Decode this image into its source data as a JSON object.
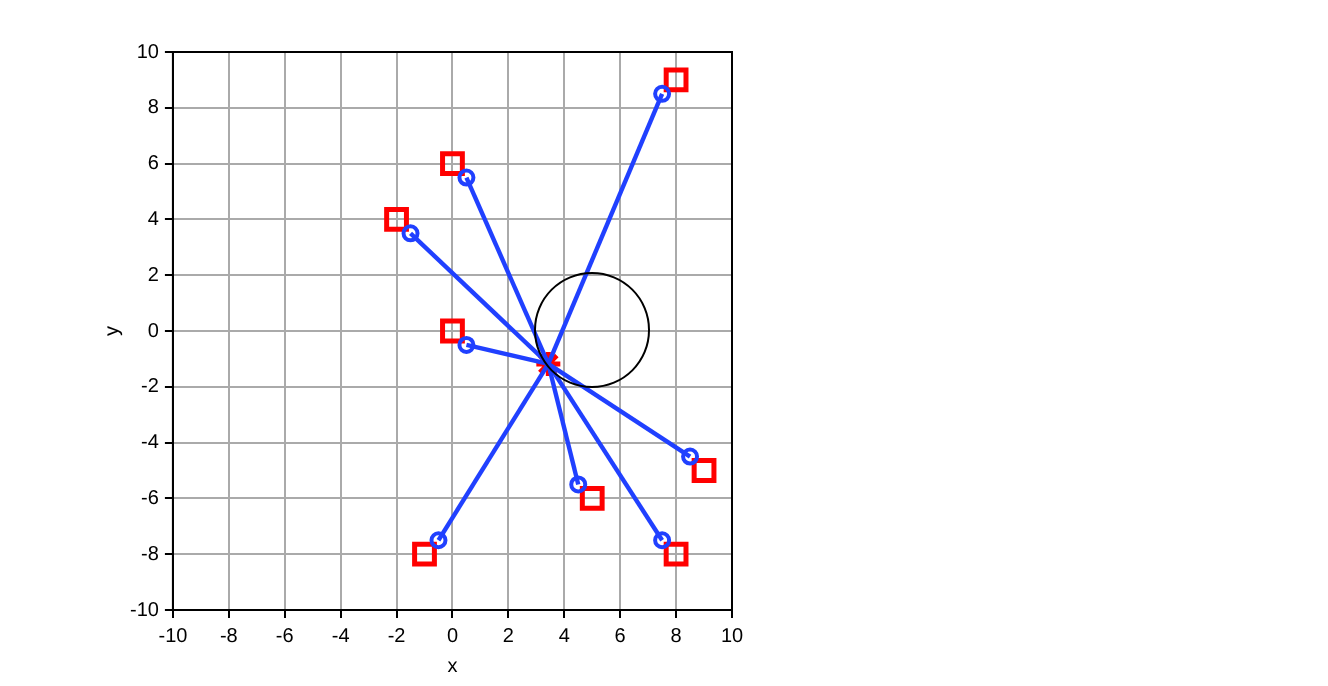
{
  "chart_data": {
    "type": "scatter",
    "xlabel": "x",
    "ylabel": "y",
    "xlim": [
      -10,
      10
    ],
    "ylim": [
      -10,
      10
    ],
    "xticks": [
      -10,
      -8,
      -6,
      -4,
      -2,
      0,
      2,
      4,
      6,
      8,
      10
    ],
    "yticks": [
      -10,
      -8,
      -6,
      -4,
      -2,
      0,
      2,
      4,
      6,
      8,
      10
    ],
    "grid": true,
    "legend": false,
    "series": [
      {
        "type": "line",
        "color": "#2040ff",
        "marker": "none",
        "x": [
          3.43,
          7.5
        ],
        "values": [
          -1.18,
          8.5
        ]
      },
      {
        "type": "line",
        "color": "#2040ff",
        "marker": "none",
        "x": [
          3.43,
          0.5
        ],
        "values": [
          -1.18,
          5.5
        ]
      },
      {
        "type": "line",
        "color": "#2040ff",
        "marker": "none",
        "x": [
          3.43,
          -1.5
        ],
        "values": [
          -1.18,
          3.5
        ]
      },
      {
        "type": "line",
        "color": "#2040ff",
        "marker": "none",
        "x": [
          3.43,
          0.5
        ],
        "values": [
          -1.18,
          -0.5
        ]
      },
      {
        "type": "line",
        "color": "#2040ff",
        "marker": "none",
        "x": [
          3.43,
          8.5
        ],
        "values": [
          -1.18,
          -4.5
        ]
      },
      {
        "type": "line",
        "color": "#2040ff",
        "marker": "none",
        "x": [
          3.43,
          4.5
        ],
        "values": [
          -1.18,
          -5.5
        ]
      },
      {
        "type": "line",
        "color": "#2040ff",
        "marker": "none",
        "x": [
          3.43,
          7.5
        ],
        "values": [
          -1.18,
          -7.5
        ]
      },
      {
        "type": "line",
        "color": "#2040ff",
        "marker": "none",
        "x": [
          3.43,
          -0.5
        ],
        "values": [
          -1.18,
          -7.5
        ]
      },
      {
        "type": "scatter",
        "color": "#2040ff",
        "marker": "circle",
        "x": [
          7.5,
          0.5,
          -1.5,
          0.5,
          8.5,
          4.5,
          7.5,
          -0.5
        ],
        "values": [
          8.5,
          5.5,
          3.5,
          -0.5,
          -4.5,
          -5.5,
          -7.5,
          -7.5
        ]
      },
      {
        "type": "scatter",
        "color": "#ff0000",
        "marker": "square",
        "x": [
          8,
          0,
          -2,
          0,
          9,
          5,
          8,
          -1
        ],
        "values": [
          9,
          6,
          4,
          0,
          -5,
          -6,
          -8,
          -8
        ]
      },
      {
        "type": "scatter",
        "color": "#ff0000",
        "marker": "cross",
        "x": [
          3.43
        ],
        "values": [
          -1.18
        ]
      }
    ]
  }
}
